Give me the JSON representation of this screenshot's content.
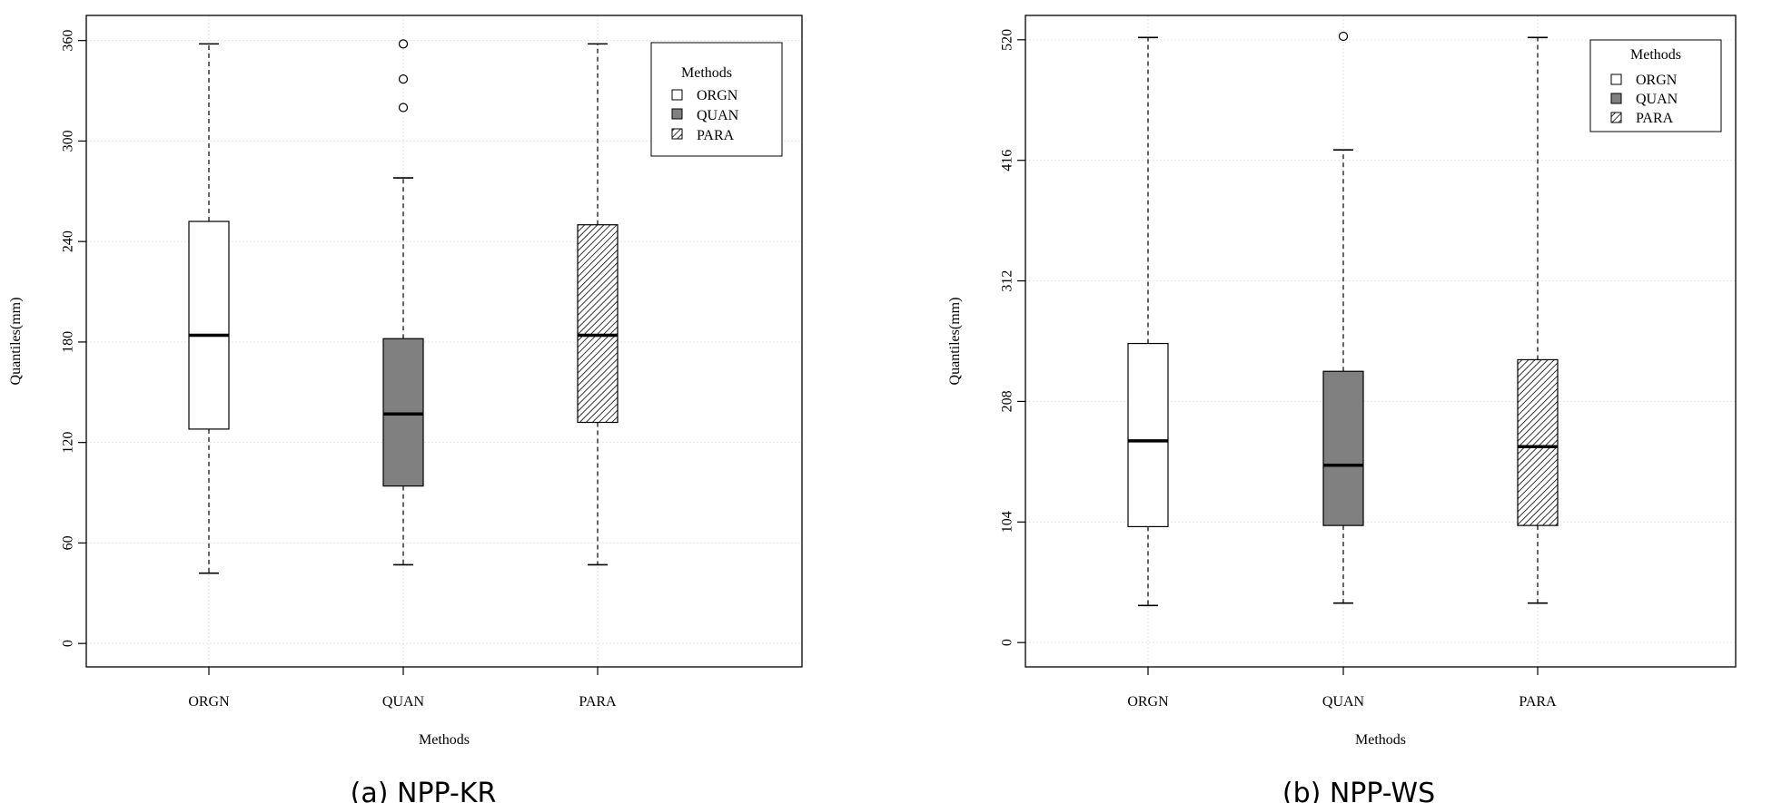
{
  "chart_data": [
    {
      "type": "boxplot",
      "caption": "(a) NPP-KR",
      "xlabel": "Methods",
      "ylabel": "Quantiles(mm)",
      "ylim": [
        -14,
        375
      ],
      "yticks": [
        0,
        60,
        120,
        180,
        240,
        300,
        360
      ],
      "grid": true,
      "categories": [
        "ORGN",
        "QUAN",
        "PARA"
      ],
      "boxes": [
        {
          "name": "ORGN",
          "fill": "white",
          "whisker_low": 42,
          "q1": 128,
          "median": 184,
          "q3": 252,
          "whisker_high": 358,
          "outliers": []
        },
        {
          "name": "QUAN",
          "fill": "gray",
          "whisker_low": 47,
          "q1": 94,
          "median": 137,
          "q3": 182,
          "whisker_high": 278,
          "outliers": [
            358,
            337,
            320
          ]
        },
        {
          "name": "PARA",
          "fill": "hatch",
          "whisker_low": 47,
          "q1": 132,
          "median": 184,
          "q3": 250,
          "whisker_high": 358,
          "outliers": []
        }
      ],
      "legend": {
        "title": "Methods",
        "position": "top-right",
        "entries": [
          "ORGN",
          "QUAN",
          "PARA"
        ]
      }
    },
    {
      "type": "boxplot",
      "caption": "(b) NPP-WS",
      "xlabel": "Methods",
      "ylabel": "Quantiles(mm)",
      "ylim": [
        -21,
        541
      ],
      "yticks": [
        0,
        104,
        208,
        312,
        416,
        520
      ],
      "grid": true,
      "categories": [
        "ORGN",
        "QUAN",
        "PARA"
      ],
      "boxes": [
        {
          "name": "ORGN",
          "fill": "white",
          "whisker_low": 32,
          "q1": 100,
          "median": 174,
          "q3": 258,
          "whisker_high": 522,
          "outliers": []
        },
        {
          "name": "QUAN",
          "fill": "gray",
          "whisker_low": 34,
          "q1": 101,
          "median": 153,
          "q3": 234,
          "whisker_high": 425,
          "outliers": [
            523
          ]
        },
        {
          "name": "PARA",
          "fill": "hatch",
          "whisker_low": 34,
          "q1": 101,
          "median": 169,
          "q3": 244,
          "whisker_high": 522,
          "outliers": []
        }
      ],
      "legend": {
        "title": "Methods",
        "position": "top-right",
        "entries": [
          "ORGN",
          "QUAN",
          "PARA"
        ]
      }
    }
  ],
  "colors": {
    "gray_fill": "#808080",
    "grid": "#e6e6e6",
    "axis": "#000000"
  }
}
